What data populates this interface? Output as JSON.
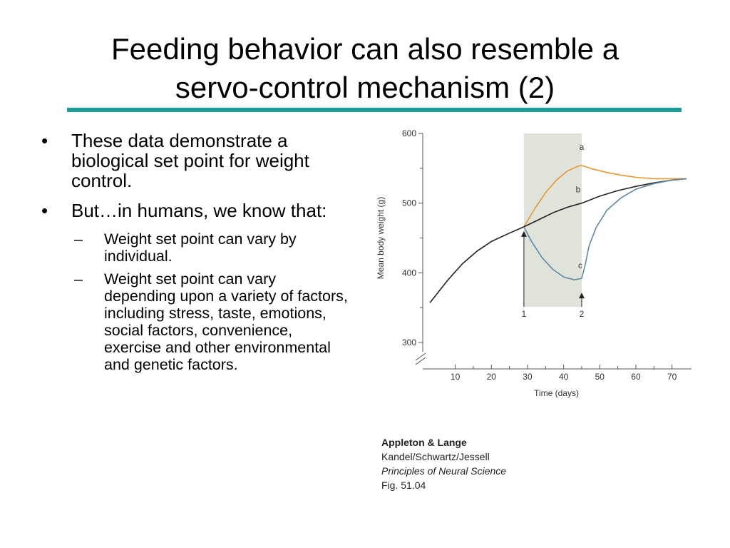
{
  "slide": {
    "title_line1": "Feeding behavior can also resemble a",
    "title_line2": "servo-control mechanism (2)",
    "accent_color": "#1f9e9c"
  },
  "bullets": [
    {
      "text": "These data demonstrate a biological set point for weight control."
    },
    {
      "text": "But…in humans, we know that:",
      "sub": [
        "Weight set point can vary by individual.",
        "Weight set point can vary depending upon a variety of factors, including stress, taste, emotions, social factors, convenience, exercise and other environmental and genetic factors."
      ]
    }
  ],
  "bullet_symbol": "•",
  "sub_bullet_symbol": "–",
  "chart_data": {
    "type": "line",
    "xlabel": "Time (days)",
    "ylabel": "Mean body weight (g)",
    "x_ticks": [
      "10",
      "20",
      "30",
      "40",
      "50",
      "60",
      "70"
    ],
    "y_ticks": [
      "300",
      "400",
      "500",
      "600"
    ],
    "xlim": [
      1,
      75
    ],
    "ylim": [
      300,
      600
    ],
    "shaded_region": [
      29,
      45
    ],
    "markers": [
      {
        "label": "1",
        "x": 29
      },
      {
        "label": "2",
        "x": 45
      }
    ],
    "series": [
      {
        "name": "a",
        "color": "#e8962e",
        "points": [
          [
            29,
            466
          ],
          [
            32,
            492
          ],
          [
            35,
            515
          ],
          [
            38,
            533
          ],
          [
            41,
            546
          ],
          [
            44,
            553
          ],
          [
            45,
            554
          ],
          [
            48,
            549
          ],
          [
            52,
            544
          ],
          [
            56,
            540
          ],
          [
            60,
            537
          ],
          [
            65,
            535
          ],
          [
            70,
            535
          ],
          [
            74,
            535
          ]
        ]
      },
      {
        "name": "b",
        "color": "#222222",
        "points": [
          [
            3,
            357
          ],
          [
            8,
            390
          ],
          [
            12,
            413
          ],
          [
            16,
            431
          ],
          [
            20,
            445
          ],
          [
            25,
            457
          ],
          [
            29,
            466
          ],
          [
            33,
            476
          ],
          [
            37,
            486
          ],
          [
            41,
            494
          ],
          [
            45,
            500
          ],
          [
            50,
            510
          ],
          [
            55,
            518
          ],
          [
            60,
            524
          ],
          [
            65,
            529
          ],
          [
            70,
            533
          ],
          [
            74,
            535
          ]
        ]
      },
      {
        "name": "c",
        "color": "#5f89a4",
        "points": [
          [
            29,
            466
          ],
          [
            31,
            446
          ],
          [
            34,
            422
          ],
          [
            37,
            405
          ],
          [
            40,
            394
          ],
          [
            43,
            390
          ],
          [
            45,
            392
          ],
          [
            46,
            412
          ],
          [
            47,
            438
          ],
          [
            49,
            465
          ],
          [
            52,
            490
          ],
          [
            56,
            508
          ],
          [
            60,
            520
          ],
          [
            65,
            528
          ],
          [
            70,
            533
          ],
          [
            74,
            535
          ]
        ]
      }
    ]
  },
  "caption": {
    "publisher": "Appleton & Lange",
    "authors": "Kandel/Schwartz/Jessell",
    "book": "Principles of Neural Science",
    "figure": "Fig. 51.04"
  }
}
